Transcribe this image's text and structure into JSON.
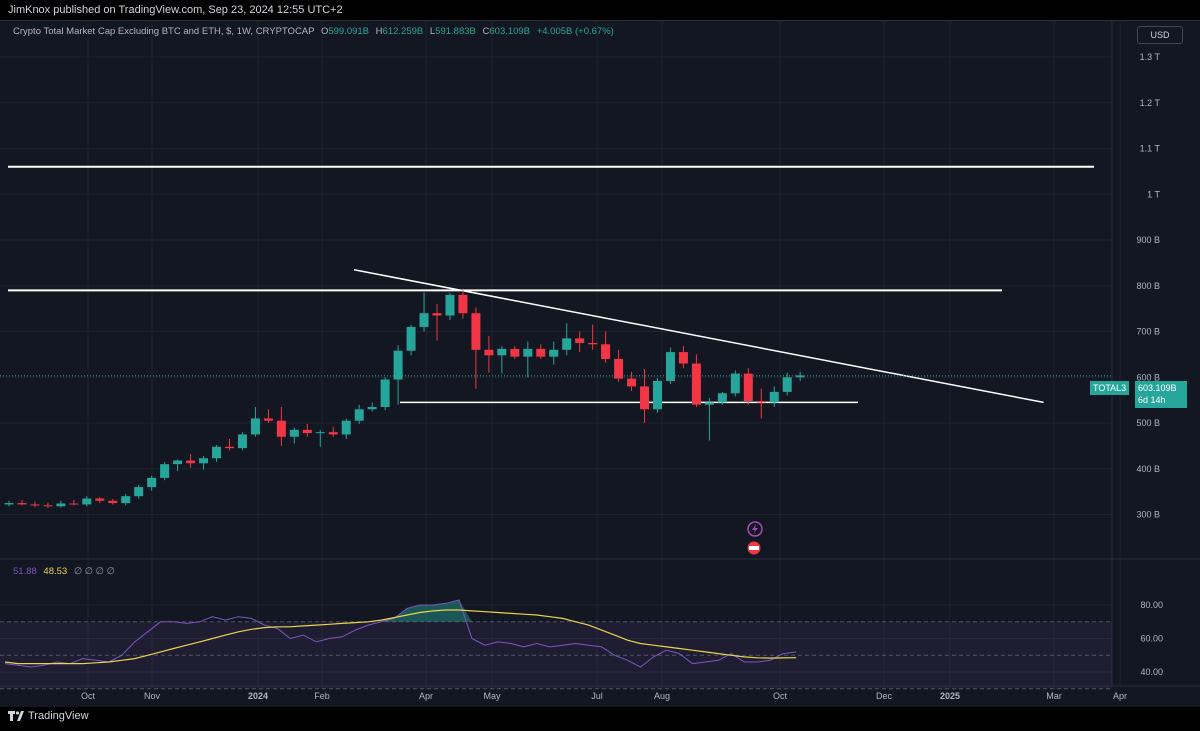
{
  "publisher": "JimKnox published on TradingView.com, Sep 23, 2024 12:55 UTC+2",
  "legend": {
    "symbol": "Crypto Total Market Cap Excluding BTC and ETH, $, 1W, CRYPTOCAP",
    "o_label": "O",
    "o_value": "599.091B",
    "h_label": "H",
    "h_value": "612.259B",
    "l_label": "L",
    "l_value": "591.883B",
    "c_label": "C",
    "c_value": "603.109B",
    "change": "+4.005B (+0.67%)"
  },
  "currency": "USD",
  "price_badge": {
    "ticker": "TOTAL3",
    "price": "603.109B",
    "countdown": "6d 14h"
  },
  "rsi_legend": {
    "rsi_value": "51.88",
    "ma_value": "48.53",
    "placeholders": "∅ ∅ ∅ ∅"
  },
  "footer": {
    "brand": "TradingView"
  },
  "colors": {
    "up": "#26a69a",
    "down": "#f23645",
    "rsi": "#7e57c2",
    "rsi_ma": "#e9d44d",
    "lines": "#ffffff",
    "background": "#131722"
  },
  "chart_data": [
    {
      "type": "candlestick",
      "title": "Crypto Total Market Cap Excluding BTC and ETH, $, 1W, CRYPTOCAP",
      "y_unit": "B",
      "y_scale": "linear",
      "ylim": [
        240,
        1350
      ],
      "y_ticks": [
        {
          "v": 300,
          "label": "300 B"
        },
        {
          "v": 400,
          "label": "400 B"
        },
        {
          "v": 500,
          "label": "500 B"
        },
        {
          "v": 600,
          "label": "600 B"
        },
        {
          "v": 700,
          "label": "700 B"
        },
        {
          "v": 800,
          "label": "800 B"
        },
        {
          "v": 900,
          "label": "900 B"
        },
        {
          "v": 1000,
          "label": "1 T"
        },
        {
          "v": 1100,
          "label": "1.1 T"
        },
        {
          "v": 1200,
          "label": "1.2 T"
        },
        {
          "v": 1300,
          "label": "1.3 T"
        }
      ],
      "x_ticks": [
        "Oct",
        "Nov",
        "2024",
        "Feb",
        "Apr",
        "May",
        "Jul",
        "Aug",
        "Oct",
        "Dec",
        "2025",
        "Mar",
        "Apr"
      ],
      "x_tick_bold": [
        "2024",
        "2025"
      ],
      "candles": [
        {
          "o": 322,
          "h": 330,
          "l": 318,
          "c": 325
        },
        {
          "o": 325,
          "h": 332,
          "l": 320,
          "c": 322
        },
        {
          "o": 322,
          "h": 328,
          "l": 316,
          "c": 320
        },
        {
          "o": 320,
          "h": 326,
          "l": 314,
          "c": 318
        },
        {
          "o": 318,
          "h": 330,
          "l": 315,
          "c": 324
        },
        {
          "o": 324,
          "h": 332,
          "l": 320,
          "c": 322
        },
        {
          "o": 322,
          "h": 340,
          "l": 318,
          "c": 335
        },
        {
          "o": 335,
          "h": 338,
          "l": 325,
          "c": 330
        },
        {
          "o": 330,
          "h": 334,
          "l": 322,
          "c": 325
        },
        {
          "o": 325,
          "h": 345,
          "l": 320,
          "c": 340
        },
        {
          "o": 340,
          "h": 365,
          "l": 335,
          "c": 360
        },
        {
          "o": 360,
          "h": 385,
          "l": 352,
          "c": 380
        },
        {
          "o": 380,
          "h": 415,
          "l": 375,
          "c": 410
        },
        {
          "o": 410,
          "h": 420,
          "l": 395,
          "c": 418
        },
        {
          "o": 418,
          "h": 432,
          "l": 402,
          "c": 412
        },
        {
          "o": 412,
          "h": 428,
          "l": 398,
          "c": 423
        },
        {
          "o": 423,
          "h": 452,
          "l": 415,
          "c": 448
        },
        {
          "o": 448,
          "h": 465,
          "l": 440,
          "c": 445
        },
        {
          "o": 445,
          "h": 480,
          "l": 440,
          "c": 475
        },
        {
          "o": 475,
          "h": 535,
          "l": 470,
          "c": 510
        },
        {
          "o": 510,
          "h": 530,
          "l": 500,
          "c": 505
        },
        {
          "o": 505,
          "h": 535,
          "l": 450,
          "c": 470
        },
        {
          "o": 470,
          "h": 490,
          "l": 455,
          "c": 485
        },
        {
          "o": 485,
          "h": 498,
          "l": 470,
          "c": 478
        },
        {
          "o": 478,
          "h": 485,
          "l": 448,
          "c": 480
        },
        {
          "o": 480,
          "h": 492,
          "l": 470,
          "c": 475
        },
        {
          "o": 475,
          "h": 510,
          "l": 465,
          "c": 505
        },
        {
          "o": 505,
          "h": 540,
          "l": 498,
          "c": 530
        },
        {
          "o": 530,
          "h": 545,
          "l": 525,
          "c": 535
        },
        {
          "o": 535,
          "h": 600,
          "l": 528,
          "c": 595
        },
        {
          "o": 595,
          "h": 670,
          "l": 540,
          "c": 658
        },
        {
          "o": 658,
          "h": 715,
          "l": 648,
          "c": 710
        },
        {
          "o": 710,
          "h": 785,
          "l": 700,
          "c": 740
        },
        {
          "o": 740,
          "h": 760,
          "l": 680,
          "c": 735
        },
        {
          "o": 735,
          "h": 785,
          "l": 725,
          "c": 780
        },
        {
          "o": 780,
          "h": 790,
          "l": 728,
          "c": 740
        },
        {
          "o": 740,
          "h": 752,
          "l": 575,
          "c": 660
        },
        {
          "o": 660,
          "h": 690,
          "l": 610,
          "c": 648
        },
        {
          "o": 648,
          "h": 668,
          "l": 608,
          "c": 662
        },
        {
          "o": 662,
          "h": 668,
          "l": 640,
          "c": 645
        },
        {
          "o": 645,
          "h": 678,
          "l": 600,
          "c": 662
        },
        {
          "o": 662,
          "h": 672,
          "l": 640,
          "c": 645
        },
        {
          "o": 645,
          "h": 678,
          "l": 628,
          "c": 660
        },
        {
          "o": 660,
          "h": 718,
          "l": 648,
          "c": 685
        },
        {
          "o": 685,
          "h": 700,
          "l": 655,
          "c": 675
        },
        {
          "o": 675,
          "h": 715,
          "l": 660,
          "c": 672
        },
        {
          "o": 672,
          "h": 700,
          "l": 632,
          "c": 640
        },
        {
          "o": 640,
          "h": 660,
          "l": 590,
          "c": 597
        },
        {
          "o": 597,
          "h": 612,
          "l": 570,
          "c": 580
        },
        {
          "o": 580,
          "h": 618,
          "l": 500,
          "c": 530
        },
        {
          "o": 530,
          "h": 598,
          "l": 522,
          "c": 592
        },
        {
          "o": 592,
          "h": 665,
          "l": 585,
          "c": 655
        },
        {
          "o": 655,
          "h": 668,
          "l": 620,
          "c": 630
        },
        {
          "o": 630,
          "h": 650,
          "l": 535,
          "c": 540
        },
        {
          "o": 540,
          "h": 555,
          "l": 462,
          "c": 545
        },
        {
          "o": 545,
          "h": 568,
          "l": 540,
          "c": 565
        },
        {
          "o": 565,
          "h": 615,
          "l": 558,
          "c": 608
        },
        {
          "o": 608,
          "h": 620,
          "l": 540,
          "c": 548
        },
        {
          "o": 548,
          "h": 575,
          "l": 510,
          "c": 545
        },
        {
          "o": 545,
          "h": 580,
          "l": 535,
          "c": 568
        },
        {
          "o": 568,
          "h": 610,
          "l": 560,
          "c": 600
        },
        {
          "o": 600,
          "h": 612,
          "l": 592,
          "c": 604
        }
      ],
      "last_price": 603.109,
      "horizontal_lines": [
        {
          "y": 1060
        },
        {
          "y": 790
        }
      ],
      "support_line": {
        "y": 545
      },
      "trendline": {
        "from_candle": 32,
        "from_y": 835,
        "to_candle": 79,
        "to_y": 545
      }
    },
    {
      "type": "line",
      "title": "RSI",
      "ylim": [
        25,
        90
      ],
      "y_ticks": [
        {
          "v": 40,
          "label": "40.00"
        },
        {
          "v": 60,
          "label": "60.00"
        },
        {
          "v": 80,
          "label": "80.00"
        }
      ],
      "band": [
        30,
        70
      ],
      "midline": 50,
      "series": [
        {
          "key": "rsi",
          "values": [
            45,
            44,
            43,
            44,
            46,
            45,
            48,
            47,
            46,
            50,
            58,
            64,
            70,
            70,
            69,
            70,
            73,
            71,
            73,
            72,
            68,
            66,
            60,
            62,
            58,
            60,
            61,
            65,
            68,
            70,
            72,
            78,
            80,
            80,
            81,
            83,
            60,
            56,
            58,
            57,
            55,
            57,
            55,
            56,
            57,
            56,
            55,
            50,
            47,
            43,
            49,
            53,
            51,
            45,
            46,
            47,
            51,
            46,
            46,
            47,
            51,
            52
          ]
        },
        {
          "key": "rsi_ma",
          "values": [
            46,
            45,
            45,
            45,
            45,
            45,
            45,
            45.5,
            46,
            47,
            48,
            50,
            52,
            54,
            56,
            58,
            60,
            62,
            64,
            65.5,
            66.5,
            67,
            67,
            67.5,
            68,
            68.5,
            69,
            69.5,
            70,
            71,
            72.5,
            74,
            75.5,
            76.5,
            77,
            77,
            76.5,
            76,
            75.5,
            75,
            74.5,
            74,
            73,
            72,
            70,
            68,
            65,
            62,
            59,
            57,
            56,
            55,
            54,
            53,
            52,
            51,
            50,
            49,
            48.5,
            48.3,
            48.4,
            48.53
          ]
        }
      ]
    }
  ]
}
